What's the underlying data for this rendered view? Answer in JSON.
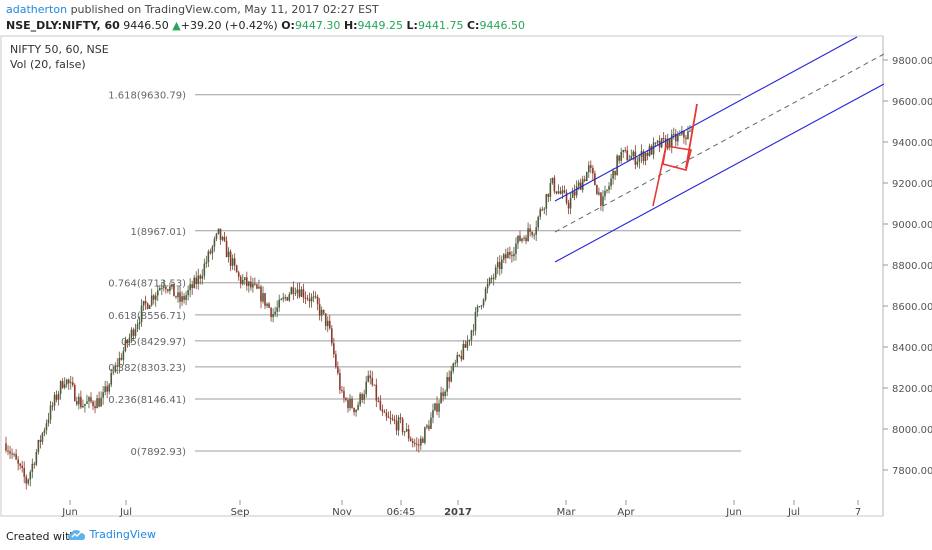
{
  "header": {
    "author": "adatherton",
    "published_text": "published on TradingView.com, May 11, 2017 02:27 EST",
    "symbol": "NSE_DLY:NIFTY, 60",
    "last": "9446.50",
    "change": "+39.20 (+0.42%)",
    "o_label": "O:",
    "o_value": "9447.30",
    "h_label": "H:",
    "h_value": "9449.25",
    "l_label": "L:",
    "l_value": "9441.75",
    "c_label": "C:",
    "c_value": "9446.50",
    "up_arrow": "▲"
  },
  "legend": {
    "line1": "NIFTY 50, 60, NSE",
    "line2": "Vol (20, false)"
  },
  "footer": {
    "created_with": "Created with",
    "brand": "TradingView"
  },
  "colors": {
    "up": "#26a65b",
    "candle": "#4a5a3a",
    "channel": "#2424d8",
    "flag": "#e53935",
    "fib": "#9e9e9e",
    "author": "#1e88e5"
  },
  "chart_data": {
    "type": "candlestick",
    "y_axis": {
      "range": [
        7640,
        9880
      ],
      "ticks": [
        "9800.00",
        "9600.00",
        "9400.00",
        "9200.00",
        "9000.00",
        "8800.00",
        "8600.00",
        "8400.00",
        "8200.00",
        "8000.00",
        "7800.00"
      ]
    },
    "x_axis": {
      "ticks": [
        "Jun",
        "Jul",
        "Sep",
        "Nov",
        "06:45",
        "2017",
        "Mar",
        "Apr",
        "Jun",
        "Jul",
        "7"
      ]
    },
    "fib_levels": [
      {
        "label": "1.618(9630.79)",
        "value": 9630.79
      },
      {
        "label": "1(8967.01)",
        "value": 8967.01
      },
      {
        "label": "0.764(8713.53)",
        "value": 8713.53
      },
      {
        "label": "0.618(8556.71)",
        "value": 8556.71
      },
      {
        "label": "0.5(8429.97)",
        "value": 8429.97
      },
      {
        "label": "0.382(8303.23)",
        "value": 8303.23
      },
      {
        "label": "0.236(8146.41)",
        "value": 8146.41
      },
      {
        "label": "0(7892.93)",
        "value": 7892.93
      }
    ],
    "price_path": [
      [
        0,
        7930
      ],
      [
        0.03,
        7740
      ],
      [
        0.06,
        8050
      ],
      [
        0.085,
        8250
      ],
      [
        0.11,
        8120
      ],
      [
        0.14,
        8140
      ],
      [
        0.16,
        8300
      ],
      [
        0.2,
        8590
      ],
      [
        0.23,
        8720
      ],
      [
        0.255,
        8620
      ],
      [
        0.28,
        8730
      ],
      [
        0.31,
        8950
      ],
      [
        0.34,
        8730
      ],
      [
        0.37,
        8660
      ],
      [
        0.39,
        8560
      ],
      [
        0.42,
        8700
      ],
      [
        0.45,
        8620
      ],
      [
        0.47,
        8500
      ],
      [
        0.49,
        8150
      ],
      [
        0.51,
        8100
      ],
      [
        0.53,
        8250
      ],
      [
        0.55,
        8050
      ],
      [
        0.575,
        8020
      ],
      [
        0.6,
        7910
      ],
      [
        0.62,
        8050
      ],
      [
        0.645,
        8250
      ],
      [
        0.67,
        8400
      ],
      [
        0.695,
        8650
      ],
      [
        0.72,
        8800
      ],
      [
        0.75,
        8930
      ],
      [
        0.77,
        8980
      ],
      [
        0.795,
        9200
      ],
      [
        0.82,
        9100
      ],
      [
        0.85,
        9270
      ],
      [
        0.87,
        9100
      ],
      [
        0.895,
        9340
      ],
      [
        0.92,
        9320
      ],
      [
        0.95,
        9380
      ],
      [
        1,
        9446
      ]
    ]
  }
}
